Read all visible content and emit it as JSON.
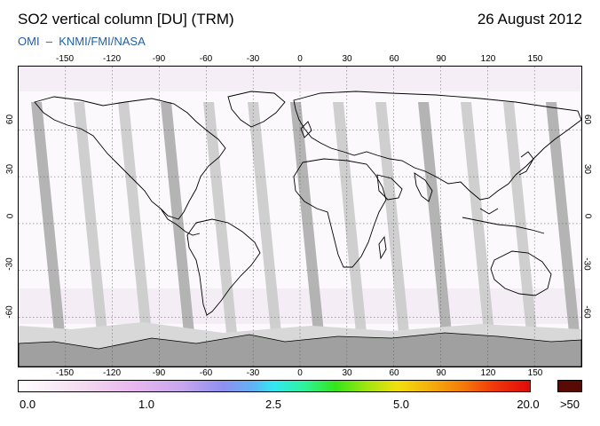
{
  "header": {
    "title": "SO2 vertical column [DU] (TRM)",
    "date": "26 August 2012",
    "credit": "OMI  –  KNMI/FMI/NASA"
  },
  "map": {
    "projection": "equirectangular",
    "lon_ticks": [
      "-150",
      "-120",
      "-90",
      "-60",
      "-30",
      "0",
      "30",
      "60",
      "90",
      "120",
      "150"
    ],
    "lat_ticks": [
      "60",
      "30",
      "0",
      "-30",
      "-60"
    ],
    "colors": {
      "land_outline": "#000000",
      "orbit_gap": "#c8c8c8",
      "orbit_gap_dark": "#a8a8a8",
      "no_data": "#a0a0a0",
      "grid": "#555555"
    }
  },
  "colorbar": {
    "labels": [
      "0.0",
      "1.0",
      "2.5",
      "5.0",
      "20.0"
    ],
    "overflow_label": ">50",
    "overflow_color": "#5a0a05"
  }
}
